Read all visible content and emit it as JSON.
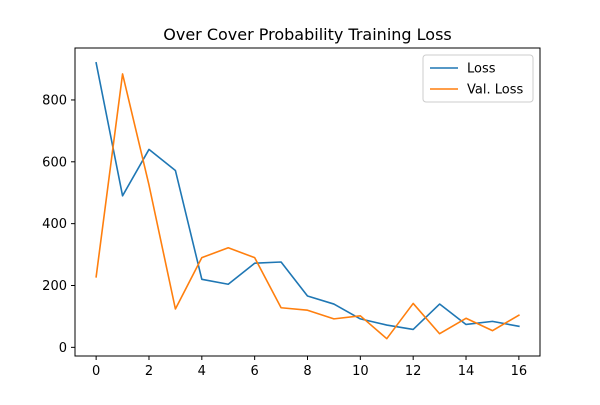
{
  "chart_data": {
    "type": "line",
    "title": "Over Cover Probability Training Loss",
    "xlabel": "",
    "ylabel": "",
    "x": [
      0,
      1,
      2,
      3,
      4,
      5,
      6,
      7,
      8,
      9,
      10,
      11,
      12,
      13,
      14,
      15,
      16
    ],
    "xlim": [
      -0.8,
      16.8
    ],
    "ylim": [
      -28,
      968
    ],
    "xticks": [
      0,
      2,
      4,
      6,
      8,
      10,
      12,
      14,
      16
    ],
    "yticks": [
      0,
      200,
      400,
      600,
      800
    ],
    "grid": false,
    "legend_position": "top-right",
    "series": [
      {
        "name": "Loss",
        "color": "#1f77b4",
        "values": [
          920,
          490,
          640,
          572,
          220,
          204,
          272,
          276,
          166,
          140,
          92,
          72,
          58,
          140,
          74,
          84,
          68
        ]
      },
      {
        "name": "Val. Loss",
        "color": "#ff7f0e",
        "values": [
          228,
          884,
          525,
          124,
          290,
          322,
          290,
          128,
          120,
          92,
          102,
          28,
          142,
          44,
          94,
          54,
          104
        ]
      }
    ]
  }
}
